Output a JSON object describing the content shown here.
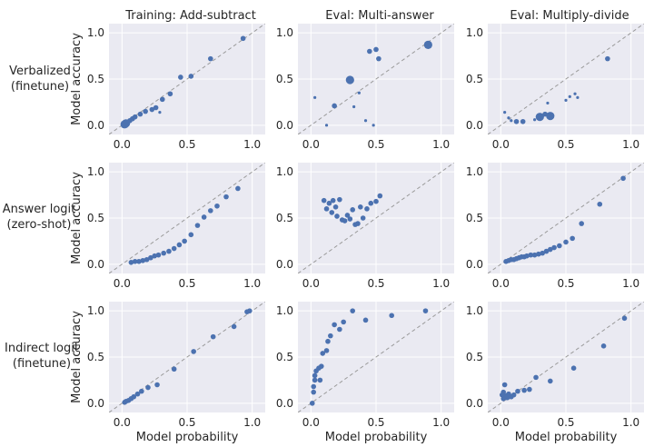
{
  "figure": {
    "column_titles": [
      "Training: Add-subtract",
      "Eval: Multi-answer",
      "Eval: Multiply-divide"
    ],
    "row_labels": [
      [
        "Verbalized",
        "(finetune)"
      ],
      [
        "Answer logit",
        "(zero-shot)"
      ],
      [
        "Indirect logit",
        "(finetune)"
      ]
    ],
    "xlabel": "Model probability",
    "ylabel": "Model accuracy",
    "colors": {
      "panel_bg": "#eaeaf2",
      "grid": "#ffffff",
      "marker": "#4c72b0",
      "diagonal": "#9a9a9a"
    }
  },
  "chart_data": [
    {
      "type": "scatter",
      "row": 0,
      "col": 0,
      "title": "Training: Add-subtract",
      "xlabel": "",
      "ylabel": "Model accuracy",
      "xlim": [
        0,
        1
      ],
      "ylim": [
        0,
        1
      ],
      "xticks": [
        0.0,
        0.5,
        1.0
      ],
      "yticks": [
        0.0,
        0.5,
        1.0
      ],
      "grid": true,
      "reference_line": "y = x",
      "points": [
        {
          "x": 0.02,
          "y": 0.01,
          "s": 3
        },
        {
          "x": 0.03,
          "y": 0.02,
          "s": 3
        },
        {
          "x": 0.04,
          "y": 0.03,
          "s": 2
        },
        {
          "x": 0.06,
          "y": 0.05,
          "s": 2
        },
        {
          "x": 0.08,
          "y": 0.07,
          "s": 2
        },
        {
          "x": 0.1,
          "y": 0.09,
          "s": 2
        },
        {
          "x": 0.14,
          "y": 0.12,
          "s": 2
        },
        {
          "x": 0.18,
          "y": 0.15,
          "s": 2
        },
        {
          "x": 0.23,
          "y": 0.17,
          "s": 2
        },
        {
          "x": 0.26,
          "y": 0.19,
          "s": 2
        },
        {
          "x": 0.29,
          "y": 0.14,
          "s": 1
        },
        {
          "x": 0.31,
          "y": 0.28,
          "s": 2
        },
        {
          "x": 0.37,
          "y": 0.34,
          "s": 2
        },
        {
          "x": 0.45,
          "y": 0.52,
          "s": 2
        },
        {
          "x": 0.53,
          "y": 0.53,
          "s": 2
        },
        {
          "x": 0.68,
          "y": 0.72,
          "s": 2
        },
        {
          "x": 0.93,
          "y": 0.94,
          "s": 2
        }
      ]
    },
    {
      "type": "scatter",
      "row": 0,
      "col": 1,
      "title": "Eval: Multi-answer",
      "xlabel": "",
      "ylabel": "",
      "xlim": [
        0,
        1
      ],
      "ylim": [
        0,
        1
      ],
      "xticks": [
        0.0,
        0.5,
        1.0
      ],
      "yticks": [
        0.0,
        0.5,
        1.0
      ],
      "grid": true,
      "reference_line": "y = x",
      "points": [
        {
          "x": 0.03,
          "y": 0.3,
          "s": 1
        },
        {
          "x": 0.12,
          "y": 0.0,
          "s": 1
        },
        {
          "x": 0.18,
          "y": 0.21,
          "s": 2
        },
        {
          "x": 0.3,
          "y": 0.49,
          "s": 3
        },
        {
          "x": 0.33,
          "y": 0.2,
          "s": 1
        },
        {
          "x": 0.37,
          "y": 0.35,
          "s": 1
        },
        {
          "x": 0.42,
          "y": 0.05,
          "s": 1
        },
        {
          "x": 0.45,
          "y": 0.8,
          "s": 2
        },
        {
          "x": 0.48,
          "y": 0.0,
          "s": 1
        },
        {
          "x": 0.5,
          "y": 0.82,
          "s": 2
        },
        {
          "x": 0.52,
          "y": 0.72,
          "s": 2
        },
        {
          "x": 0.9,
          "y": 0.87,
          "s": 3
        }
      ]
    },
    {
      "type": "scatter",
      "row": 0,
      "col": 2,
      "title": "Eval: Multiply-divide",
      "xlabel": "",
      "ylabel": "",
      "xlim": [
        0,
        1
      ],
      "ylim": [
        0,
        1
      ],
      "xticks": [
        0.0,
        0.5,
        1.0
      ],
      "yticks": [
        0.0,
        0.5,
        1.0
      ],
      "grid": true,
      "reference_line": "y = x",
      "points": [
        {
          "x": 0.03,
          "y": 0.14,
          "s": 1
        },
        {
          "x": 0.06,
          "y": 0.08,
          "s": 1
        },
        {
          "x": 0.08,
          "y": 0.05,
          "s": 1
        },
        {
          "x": 0.12,
          "y": 0.04,
          "s": 2
        },
        {
          "x": 0.17,
          "y": 0.04,
          "s": 2
        },
        {
          "x": 0.26,
          "y": 0.06,
          "s": 1
        },
        {
          "x": 0.3,
          "y": 0.09,
          "s": 3
        },
        {
          "x": 0.34,
          "y": 0.12,
          "s": 2
        },
        {
          "x": 0.36,
          "y": 0.24,
          "s": 1
        },
        {
          "x": 0.38,
          "y": 0.1,
          "s": 3
        },
        {
          "x": 0.5,
          "y": 0.27,
          "s": 1
        },
        {
          "x": 0.53,
          "y": 0.31,
          "s": 1
        },
        {
          "x": 0.57,
          "y": 0.34,
          "s": 1
        },
        {
          "x": 0.59,
          "y": 0.3,
          "s": 1
        },
        {
          "x": 0.82,
          "y": 0.72,
          "s": 2
        }
      ]
    },
    {
      "type": "scatter",
      "row": 1,
      "col": 0,
      "title": "",
      "xlabel": "",
      "ylabel": "Model accuracy",
      "xlim": [
        0,
        1
      ],
      "ylim": [
        0,
        1
      ],
      "xticks": [
        0.0,
        0.5,
        1.0
      ],
      "yticks": [
        0.0,
        0.5,
        1.0
      ],
      "grid": true,
      "reference_line": "y = x",
      "points": [
        {
          "x": 0.07,
          "y": 0.02,
          "s": 2
        },
        {
          "x": 0.1,
          "y": 0.03,
          "s": 2
        },
        {
          "x": 0.13,
          "y": 0.03,
          "s": 2
        },
        {
          "x": 0.16,
          "y": 0.04,
          "s": 2
        },
        {
          "x": 0.19,
          "y": 0.05,
          "s": 2
        },
        {
          "x": 0.22,
          "y": 0.07,
          "s": 2
        },
        {
          "x": 0.25,
          "y": 0.09,
          "s": 2
        },
        {
          "x": 0.28,
          "y": 0.1,
          "s": 2
        },
        {
          "x": 0.32,
          "y": 0.12,
          "s": 2
        },
        {
          "x": 0.36,
          "y": 0.14,
          "s": 2
        },
        {
          "x": 0.4,
          "y": 0.17,
          "s": 2
        },
        {
          "x": 0.44,
          "y": 0.21,
          "s": 2
        },
        {
          "x": 0.48,
          "y": 0.25,
          "s": 2
        },
        {
          "x": 0.53,
          "y": 0.32,
          "s": 2
        },
        {
          "x": 0.58,
          "y": 0.42,
          "s": 2
        },
        {
          "x": 0.63,
          "y": 0.51,
          "s": 2
        },
        {
          "x": 0.68,
          "y": 0.58,
          "s": 2
        },
        {
          "x": 0.73,
          "y": 0.63,
          "s": 2
        },
        {
          "x": 0.8,
          "y": 0.73,
          "s": 2
        },
        {
          "x": 0.89,
          "y": 0.82,
          "s": 2
        }
      ]
    },
    {
      "type": "scatter",
      "row": 1,
      "col": 1,
      "title": "",
      "xlabel": "",
      "ylabel": "",
      "xlim": [
        0,
        1
      ],
      "ylim": [
        0,
        1
      ],
      "xticks": [
        0.0,
        0.5,
        1.0
      ],
      "yticks": [
        0.0,
        0.5,
        1.0
      ],
      "grid": true,
      "reference_line": "y = x",
      "points": [
        {
          "x": 0.1,
          "y": 0.69,
          "s": 2
        },
        {
          "x": 0.12,
          "y": 0.6,
          "s": 2
        },
        {
          "x": 0.14,
          "y": 0.66,
          "s": 2
        },
        {
          "x": 0.16,
          "y": 0.56,
          "s": 2
        },
        {
          "x": 0.17,
          "y": 0.69,
          "s": 2
        },
        {
          "x": 0.19,
          "y": 0.62,
          "s": 2
        },
        {
          "x": 0.2,
          "y": 0.52,
          "s": 2
        },
        {
          "x": 0.22,
          "y": 0.7,
          "s": 2
        },
        {
          "x": 0.24,
          "y": 0.48,
          "s": 2
        },
        {
          "x": 0.26,
          "y": 0.47,
          "s": 2
        },
        {
          "x": 0.28,
          "y": 0.53,
          "s": 2
        },
        {
          "x": 0.3,
          "y": 0.49,
          "s": 2
        },
        {
          "x": 0.32,
          "y": 0.59,
          "s": 2
        },
        {
          "x": 0.34,
          "y": 0.43,
          "s": 2
        },
        {
          "x": 0.36,
          "y": 0.44,
          "s": 2
        },
        {
          "x": 0.38,
          "y": 0.62,
          "s": 2
        },
        {
          "x": 0.4,
          "y": 0.5,
          "s": 2
        },
        {
          "x": 0.43,
          "y": 0.6,
          "s": 2
        },
        {
          "x": 0.46,
          "y": 0.66,
          "s": 2
        },
        {
          "x": 0.5,
          "y": 0.68,
          "s": 2
        },
        {
          "x": 0.53,
          "y": 0.74,
          "s": 2
        }
      ]
    },
    {
      "type": "scatter",
      "row": 1,
      "col": 2,
      "title": "",
      "xlabel": "",
      "ylabel": "",
      "xlim": [
        0,
        1
      ],
      "ylim": [
        0,
        1
      ],
      "xticks": [
        0.0,
        0.5,
        1.0
      ],
      "yticks": [
        0.0,
        0.5,
        1.0
      ],
      "grid": true,
      "reference_line": "y = x",
      "points": [
        {
          "x": 0.04,
          "y": 0.03,
          "s": 2
        },
        {
          "x": 0.06,
          "y": 0.04,
          "s": 2
        },
        {
          "x": 0.08,
          "y": 0.05,
          "s": 2
        },
        {
          "x": 0.1,
          "y": 0.05,
          "s": 2
        },
        {
          "x": 0.12,
          "y": 0.06,
          "s": 2
        },
        {
          "x": 0.14,
          "y": 0.07,
          "s": 2
        },
        {
          "x": 0.16,
          "y": 0.08,
          "s": 2
        },
        {
          "x": 0.18,
          "y": 0.08,
          "s": 2
        },
        {
          "x": 0.2,
          "y": 0.09,
          "s": 2
        },
        {
          "x": 0.23,
          "y": 0.1,
          "s": 2
        },
        {
          "x": 0.26,
          "y": 0.1,
          "s": 2
        },
        {
          "x": 0.29,
          "y": 0.11,
          "s": 2
        },
        {
          "x": 0.32,
          "y": 0.12,
          "s": 2
        },
        {
          "x": 0.35,
          "y": 0.14,
          "s": 2
        },
        {
          "x": 0.38,
          "y": 0.16,
          "s": 2
        },
        {
          "x": 0.41,
          "y": 0.18,
          "s": 2
        },
        {
          "x": 0.45,
          "y": 0.2,
          "s": 2
        },
        {
          "x": 0.5,
          "y": 0.24,
          "s": 2
        },
        {
          "x": 0.55,
          "y": 0.28,
          "s": 2
        },
        {
          "x": 0.62,
          "y": 0.44,
          "s": 2
        },
        {
          "x": 0.76,
          "y": 0.65,
          "s": 2
        },
        {
          "x": 0.94,
          "y": 0.93,
          "s": 2
        }
      ]
    },
    {
      "type": "scatter",
      "row": 2,
      "col": 0,
      "title": "",
      "xlabel": "Model probability",
      "ylabel": "Model accuracy",
      "xlim": [
        0,
        1
      ],
      "ylim": [
        0,
        1
      ],
      "xticks": [
        0.0,
        0.5,
        1.0
      ],
      "yticks": [
        0.0,
        0.5,
        1.0
      ],
      "grid": true,
      "reference_line": "y = x",
      "points": [
        {
          "x": 0.02,
          "y": 0.01,
          "s": 2
        },
        {
          "x": 0.03,
          "y": 0.02,
          "s": 2
        },
        {
          "x": 0.05,
          "y": 0.03,
          "s": 2
        },
        {
          "x": 0.07,
          "y": 0.05,
          "s": 2
        },
        {
          "x": 0.09,
          "y": 0.07,
          "s": 2
        },
        {
          "x": 0.12,
          "y": 0.1,
          "s": 2
        },
        {
          "x": 0.15,
          "y": 0.13,
          "s": 2
        },
        {
          "x": 0.2,
          "y": 0.17,
          "s": 2
        },
        {
          "x": 0.27,
          "y": 0.2,
          "s": 2
        },
        {
          "x": 0.4,
          "y": 0.37,
          "s": 2
        },
        {
          "x": 0.55,
          "y": 0.56,
          "s": 2
        },
        {
          "x": 0.7,
          "y": 0.72,
          "s": 2
        },
        {
          "x": 0.86,
          "y": 0.83,
          "s": 2
        },
        {
          "x": 0.96,
          "y": 0.99,
          "s": 2
        },
        {
          "x": 0.98,
          "y": 1.0,
          "s": 2
        }
      ]
    },
    {
      "type": "scatter",
      "row": 2,
      "col": 1,
      "title": "",
      "xlabel": "Model probability",
      "ylabel": "",
      "xlim": [
        0,
        1
      ],
      "ylim": [
        0,
        1
      ],
      "xticks": [
        0.0,
        0.5,
        1.0
      ],
      "yticks": [
        0.0,
        0.5,
        1.0
      ],
      "grid": true,
      "reference_line": "y = x",
      "points": [
        {
          "x": 0.01,
          "y": 0.0,
          "s": 2
        },
        {
          "x": 0.02,
          "y": 0.12,
          "s": 2
        },
        {
          "x": 0.02,
          "y": 0.18,
          "s": 2
        },
        {
          "x": 0.03,
          "y": 0.25,
          "s": 2
        },
        {
          "x": 0.03,
          "y": 0.3,
          "s": 2
        },
        {
          "x": 0.04,
          "y": 0.35,
          "s": 2
        },
        {
          "x": 0.06,
          "y": 0.38,
          "s": 2
        },
        {
          "x": 0.07,
          "y": 0.25,
          "s": 2
        },
        {
          "x": 0.08,
          "y": 0.4,
          "s": 2
        },
        {
          "x": 0.09,
          "y": 0.54,
          "s": 2
        },
        {
          "x": 0.12,
          "y": 0.57,
          "s": 2
        },
        {
          "x": 0.13,
          "y": 0.67,
          "s": 2
        },
        {
          "x": 0.15,
          "y": 0.73,
          "s": 2
        },
        {
          "x": 0.18,
          "y": 0.85,
          "s": 2
        },
        {
          "x": 0.22,
          "y": 0.8,
          "s": 2
        },
        {
          "x": 0.25,
          "y": 0.88,
          "s": 2
        },
        {
          "x": 0.32,
          "y": 1.0,
          "s": 2
        },
        {
          "x": 0.42,
          "y": 0.9,
          "s": 2
        },
        {
          "x": 0.62,
          "y": 0.95,
          "s": 2
        },
        {
          "x": 0.88,
          "y": 1.0,
          "s": 2
        }
      ]
    },
    {
      "type": "scatter",
      "row": 2,
      "col": 2,
      "title": "",
      "xlabel": "Model probability",
      "ylabel": "",
      "xlim": [
        0,
        1
      ],
      "ylim": [
        0,
        1
      ],
      "xticks": [
        0.0,
        0.5,
        1.0
      ],
      "yticks": [
        0.0,
        0.5,
        1.0
      ],
      "grid": true,
      "reference_line": "y = x",
      "points": [
        {
          "x": 0.01,
          "y": 0.09,
          "s": 2
        },
        {
          "x": 0.02,
          "y": 0.05,
          "s": 2
        },
        {
          "x": 0.02,
          "y": 0.12,
          "s": 2
        },
        {
          "x": 0.03,
          "y": 0.2,
          "s": 2
        },
        {
          "x": 0.04,
          "y": 0.08,
          "s": 2
        },
        {
          "x": 0.05,
          "y": 0.06,
          "s": 2
        },
        {
          "x": 0.06,
          "y": 0.1,
          "s": 2
        },
        {
          "x": 0.08,
          "y": 0.07,
          "s": 2
        },
        {
          "x": 0.1,
          "y": 0.09,
          "s": 2
        },
        {
          "x": 0.13,
          "y": 0.13,
          "s": 2
        },
        {
          "x": 0.18,
          "y": 0.14,
          "s": 2
        },
        {
          "x": 0.22,
          "y": 0.15,
          "s": 2
        },
        {
          "x": 0.27,
          "y": 0.28,
          "s": 2
        },
        {
          "x": 0.38,
          "y": 0.24,
          "s": 2
        },
        {
          "x": 0.56,
          "y": 0.38,
          "s": 2
        },
        {
          "x": 0.79,
          "y": 0.62,
          "s": 2
        },
        {
          "x": 0.95,
          "y": 0.92,
          "s": 2
        }
      ]
    }
  ]
}
